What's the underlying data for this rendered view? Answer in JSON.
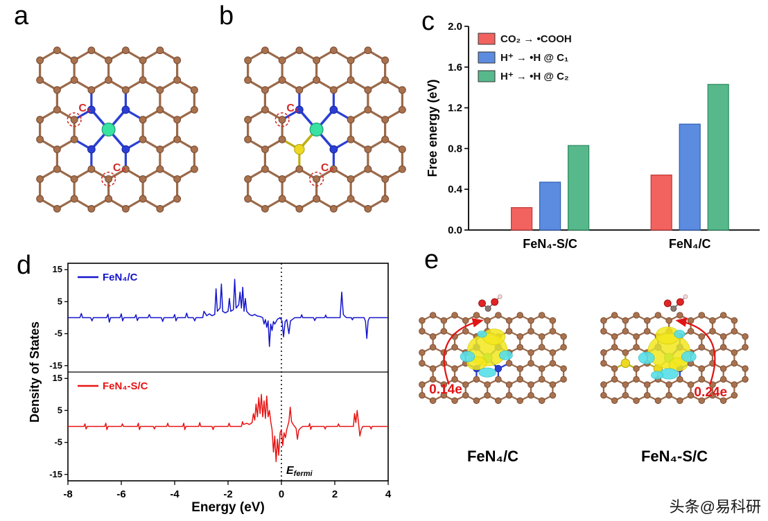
{
  "panel_labels": {
    "a": "a",
    "b": "b",
    "c": "c",
    "d": "d",
    "e": "e"
  },
  "molecules": {
    "site1_label": "C₁",
    "site2_label": "C₂",
    "colors": {
      "carbon": "#a9724f",
      "carbon_stroke": "#7a4b31",
      "bond": "#9a6a4a",
      "nitrogen": "#2b3fd4",
      "nitrogen_stroke": "#1b2ba0",
      "iron": "#3ae2a2",
      "iron_stroke": "#1f9e74",
      "sulfur": "#ecd921",
      "sulfur_stroke": "#b5a410",
      "sulfur_bond": "#bfae12",
      "site_circle": "#d42a2a"
    }
  },
  "chart_data": [
    {
      "id": "free-energy-bars",
      "type": "bar",
      "title": "",
      "xlabel": "",
      "ylabel": "Free energy (eV)",
      "ylim": [
        0,
        2.0
      ],
      "yticks": [
        0.0,
        0.4,
        0.8,
        1.2,
        1.6,
        2.0
      ],
      "ytick_labels": [
        "0.0",
        "0.4",
        "0.8",
        "1.2",
        "1.6",
        "2.0"
      ],
      "categories": [
        "FeN₄-S/C",
        "FeN₄/C"
      ],
      "legend_position": "top-left",
      "series": [
        {
          "name": "CO₂ → •COOH",
          "color": "#f2635f",
          "edge": "#c23535",
          "values": [
            0.22,
            0.54
          ]
        },
        {
          "name": "H⁺ → •H @ C₁",
          "color": "#5b8ce0",
          "edge": "#2f5fb3",
          "values": [
            0.47,
            1.04
          ]
        },
        {
          "name": "H⁺ → •H @ C₂",
          "color": "#57b98b",
          "edge": "#2e8a60",
          "values": [
            0.83,
            1.43
          ]
        }
      ]
    },
    {
      "id": "dos",
      "type": "line",
      "xlabel": "Energy (eV)",
      "ylabel": "Density of States",
      "xlim": [
        -8,
        4
      ],
      "xticks": [
        -8,
        -6,
        -4,
        -2,
        0,
        2,
        4
      ],
      "xtick_labels": [
        "-8",
        "-6",
        "-4",
        "-2",
        "0",
        "2",
        "4"
      ],
      "ylim": [
        -15,
        15
      ],
      "yticks": [
        15,
        5,
        -5,
        -15
      ],
      "ytick_labels": [
        "15",
        "5",
        "-5",
        "-15"
      ],
      "fermi": {
        "main": "E",
        "sub": "fermi"
      },
      "series": [
        {
          "name": "FeN₄/C",
          "color": "#1414cc",
          "points": [
            [
              -8,
              0
            ],
            [
              -7.55,
              0
            ],
            [
              -7.5,
              1.3
            ],
            [
              -7.45,
              0
            ],
            [
              -7.15,
              0
            ],
            [
              -7.1,
              -1
            ],
            [
              -7.05,
              0
            ],
            [
              -6.55,
              0
            ],
            [
              -6.5,
              1.1
            ],
            [
              -6.45,
              -1.4
            ],
            [
              -6.4,
              0
            ],
            [
              -6.05,
              0
            ],
            [
              -6,
              1.2
            ],
            [
              -5.95,
              -1
            ],
            [
              -5.9,
              0
            ],
            [
              -5.5,
              0
            ],
            [
              -5.45,
              0.9
            ],
            [
              -5.4,
              -0.9
            ],
            [
              -5.35,
              0
            ],
            [
              -5,
              0
            ],
            [
              -4.95,
              1
            ],
            [
              -4.9,
              0
            ],
            [
              -4.5,
              0
            ],
            [
              -4.45,
              -1.2
            ],
            [
              -4.4,
              0
            ],
            [
              -4.05,
              0
            ],
            [
              -4,
              1
            ],
            [
              -3.95,
              -1
            ],
            [
              -3.9,
              0
            ],
            [
              -3.6,
              0
            ],
            [
              -3.55,
              1.4
            ],
            [
              -3.5,
              0
            ],
            [
              -3.3,
              0
            ],
            [
              -3.25,
              -1
            ],
            [
              -3.2,
              0
            ],
            [
              -2.95,
              0
            ],
            [
              -2.9,
              2
            ],
            [
              -2.8,
              0.6
            ],
            [
              -2.7,
              1.2
            ],
            [
              -2.6,
              0.6
            ],
            [
              -2.5,
              1
            ],
            [
              -2.45,
              9
            ],
            [
              -2.4,
              2
            ],
            [
              -2.3,
              3
            ],
            [
              -2.25,
              10.5
            ],
            [
              -2.2,
              2
            ],
            [
              -2.1,
              1.5
            ],
            [
              -2,
              2
            ],
            [
              -1.95,
              6
            ],
            [
              -1.9,
              2
            ],
            [
              -1.8,
              2.5
            ],
            [
              -1.75,
              12
            ],
            [
              -1.7,
              3
            ],
            [
              -1.6,
              4
            ],
            [
              -1.55,
              8
            ],
            [
              -1.5,
              3
            ],
            [
              -1.45,
              9.5
            ],
            [
              -1.4,
              2
            ],
            [
              -1.35,
              6
            ],
            [
              -1.3,
              2
            ],
            [
              -1.2,
              1
            ],
            [
              -1.1,
              0.6
            ],
            [
              -1,
              1
            ],
            [
              -0.9,
              0.5
            ],
            [
              -0.8,
              0.4
            ],
            [
              -0.7,
              0
            ],
            [
              -0.65,
              -2
            ],
            [
              -0.6,
              -0.6
            ],
            [
              -0.55,
              -3
            ],
            [
              -0.5,
              -1
            ],
            [
              -0.45,
              -9
            ],
            [
              -0.4,
              -2
            ],
            [
              -0.35,
              -4
            ],
            [
              -0.3,
              -1.2
            ],
            [
              -0.25,
              -2
            ],
            [
              -0.15,
              -0.5
            ],
            [
              -0.05,
              0
            ],
            [
              0.02,
              -1
            ],
            [
              0.08,
              -6
            ],
            [
              0.14,
              -1.2
            ],
            [
              0.2,
              -0.6
            ],
            [
              0.28,
              -5
            ],
            [
              0.34,
              -1
            ],
            [
              0.42,
              -0.5
            ],
            [
              0.5,
              0
            ],
            [
              0.72,
              0
            ],
            [
              0.76,
              0.9
            ],
            [
              0.8,
              0
            ],
            [
              1.2,
              0
            ],
            [
              1.25,
              -0.9
            ],
            [
              1.3,
              0
            ],
            [
              1.62,
              0
            ],
            [
              1.66,
              0.8
            ],
            [
              1.7,
              0
            ],
            [
              2.2,
              0
            ],
            [
              2.26,
              8
            ],
            [
              2.32,
              1
            ],
            [
              2.38,
              0.4
            ],
            [
              2.45,
              0
            ],
            [
              2.62,
              0
            ],
            [
              2.66,
              -0.7
            ],
            [
              2.7,
              0
            ],
            [
              3.1,
              0
            ],
            [
              3.15,
              -1.2
            ],
            [
              3.2,
              -6.5
            ],
            [
              3.25,
              -1
            ],
            [
              3.3,
              0
            ],
            [
              3.6,
              0
            ],
            [
              4,
              0
            ]
          ]
        },
        {
          "name": "FeN₄-S/C",
          "color": "#e81414",
          "points": [
            [
              -8,
              0
            ],
            [
              -7.4,
              0
            ],
            [
              -7.36,
              0.8
            ],
            [
              -7.32,
              -0.8
            ],
            [
              -7.28,
              0
            ],
            [
              -6.62,
              0
            ],
            [
              -6.58,
              1
            ],
            [
              -6.54,
              -1
            ],
            [
              -6.5,
              0
            ],
            [
              -6,
              0
            ],
            [
              -5.96,
              0.8
            ],
            [
              -5.92,
              0
            ],
            [
              -5.4,
              0
            ],
            [
              -5.36,
              1
            ],
            [
              -5.32,
              -1
            ],
            [
              -5.28,
              0
            ],
            [
              -4.8,
              0
            ],
            [
              -4.76,
              -0.8
            ],
            [
              -4.72,
              0
            ],
            [
              -4.3,
              0
            ],
            [
              -4.26,
              1
            ],
            [
              -4.22,
              0
            ],
            [
              -3.7,
              0
            ],
            [
              -3.66,
              1
            ],
            [
              -3.62,
              -1
            ],
            [
              -3.58,
              0
            ],
            [
              -3.1,
              0
            ],
            [
              -3.06,
              1.2
            ],
            [
              -3.02,
              0
            ],
            [
              -2.6,
              0
            ],
            [
              -2.56,
              -1
            ],
            [
              -2.52,
              0
            ],
            [
              -2,
              0
            ],
            [
              -1.96,
              1
            ],
            [
              -1.92,
              0
            ],
            [
              -1.5,
              0
            ],
            [
              -1.46,
              1.5
            ],
            [
              -1.42,
              0.6
            ],
            [
              -1.3,
              1
            ],
            [
              -1.2,
              0.6
            ],
            [
              -1.1,
              1.2
            ],
            [
              -1.05,
              4
            ],
            [
              -1,
              2
            ],
            [
              -0.95,
              7
            ],
            [
              -0.9,
              3
            ],
            [
              -0.85,
              9
            ],
            [
              -0.8,
              4
            ],
            [
              -0.75,
              10
            ],
            [
              -0.7,
              3
            ],
            [
              -0.65,
              8
            ],
            [
              -0.6,
              2.5
            ],
            [
              -0.55,
              9.5
            ],
            [
              -0.5,
              3
            ],
            [
              -0.45,
              5
            ],
            [
              -0.4,
              1.5
            ],
            [
              -0.35,
              -1
            ],
            [
              -0.3,
              -8
            ],
            [
              -0.25,
              -3
            ],
            [
              -0.2,
              -11
            ],
            [
              -0.15,
              -4
            ],
            [
              -0.1,
              -9
            ],
            [
              -0.05,
              -2
            ],
            [
              0,
              -1
            ],
            [
              0.05,
              -6
            ],
            [
              0.1,
              -2
            ],
            [
              0.15,
              -3.5
            ],
            [
              0.2,
              -1
            ],
            [
              0.28,
              1.5
            ],
            [
              0.33,
              6
            ],
            [
              0.38,
              1.5
            ],
            [
              0.45,
              0.5
            ],
            [
              0.55,
              -0.6
            ],
            [
              0.6,
              -4
            ],
            [
              0.65,
              -1.2
            ],
            [
              0.72,
              -0.5
            ],
            [
              0.8,
              0
            ],
            [
              1.02,
              0
            ],
            [
              1.06,
              0.9
            ],
            [
              1.1,
              -0.9
            ],
            [
              1.14,
              0
            ],
            [
              1.6,
              0
            ],
            [
              1.64,
              -0.8
            ],
            [
              1.68,
              0
            ],
            [
              2.1,
              0
            ],
            [
              2.14,
              0.8
            ],
            [
              2.18,
              0
            ],
            [
              2.7,
              0
            ],
            [
              2.74,
              4
            ],
            [
              2.79,
              1.2
            ],
            [
              2.84,
              5
            ],
            [
              2.89,
              1
            ],
            [
              2.94,
              -3
            ],
            [
              2.99,
              -1
            ],
            [
              3.05,
              0
            ],
            [
              3.32,
              0
            ],
            [
              3.36,
              -0.8
            ],
            [
              3.4,
              0
            ],
            [
              3.7,
              0
            ],
            [
              4,
              0
            ]
          ]
        }
      ]
    }
  ],
  "panel_e": {
    "left": {
      "value": "0.14e",
      "caption": "FeN₄/C"
    },
    "right": {
      "value": "0.24e",
      "caption": "FeN₄-S/C"
    },
    "isosurface": {
      "positive": "#f2e71c",
      "negative": "#57dfe8"
    },
    "arrow_color": "#e01515",
    "adsorbate": {
      "oxygen": "#e02525",
      "hydrogen": "#f2dede",
      "carbon": "#8a7a72"
    }
  },
  "watermark": "头条@易科研"
}
